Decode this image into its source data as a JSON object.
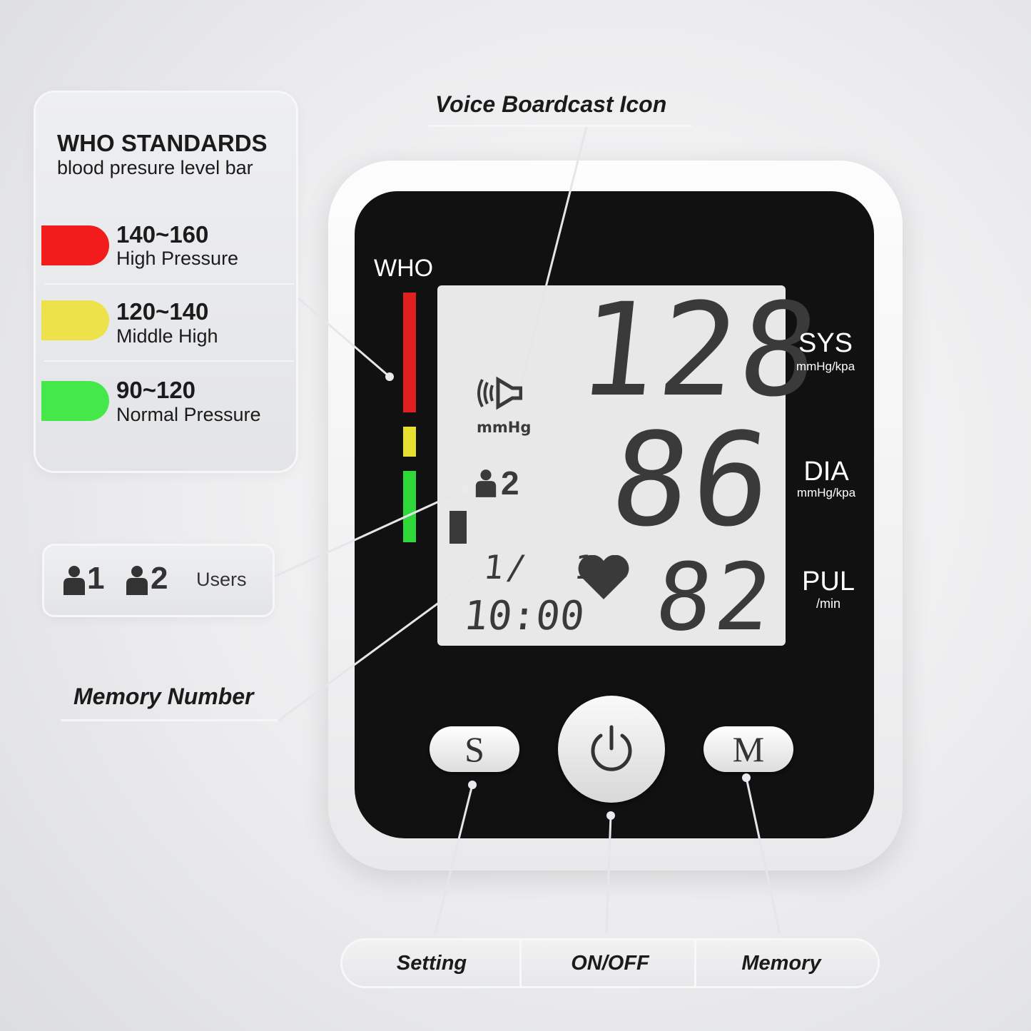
{
  "legend": {
    "title": "WHO STANDARDS",
    "subtitle": "blood presure level bar",
    "levels": [
      {
        "range": "140~160",
        "label": "High Pressure",
        "color": "#f21c1c"
      },
      {
        "range": "120~140",
        "label": "Middle High",
        "color": "#ede24a"
      },
      {
        "range": "90~120",
        "label": "Normal Pressure",
        "color": "#45e84a"
      }
    ]
  },
  "users": {
    "user1": "1",
    "user2": "2",
    "label": "Users"
  },
  "callouts": {
    "voice": "Voice Boardcast Icon",
    "memory_number": "Memory Number"
  },
  "device": {
    "who_label": "WHO",
    "who_bar_colors": [
      "#e02020",
      "#e8e030",
      "#2ed838"
    ],
    "lcd": {
      "sys": "128",
      "dia": "86",
      "pul": "82",
      "unit": "mmHg",
      "user": "2",
      "date": "1/  1",
      "time": "10:00"
    },
    "labels": {
      "sys": "SYS",
      "sys_unit": "mmHg/kpa",
      "dia": "DIA",
      "dia_unit": "mmHg/kpa",
      "pul": "PUL",
      "pul_unit": "/min"
    },
    "buttons": {
      "s": "S",
      "m": "M"
    }
  },
  "bottom_bar": {
    "setting": "Setting",
    "onoff": "ON/OFF",
    "memory": "Memory"
  }
}
